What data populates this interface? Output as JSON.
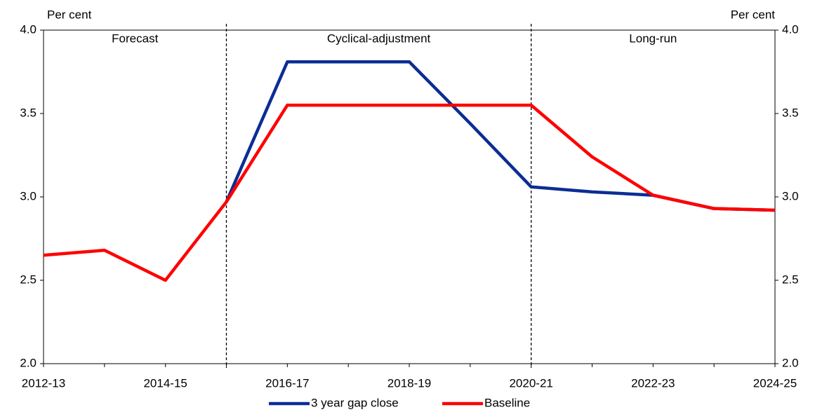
{
  "chart_data": {
    "type": "line",
    "ylabel": "Per cent",
    "y2label": "Per cent",
    "categories": [
      "2012-13",
      null,
      "2014-15",
      null,
      "2016-17",
      null,
      "2018-19",
      null,
      "2020-21",
      null,
      "2022-23",
      null,
      "2024-25"
    ],
    "series": [
      {
        "name": "3 year gap close",
        "color": "#0b2d94",
        "values": [
          null,
          null,
          null,
          2.97,
          3.81,
          3.81,
          3.81,
          3.44,
          3.06,
          3.03,
          3.01,
          2.93,
          2.92
        ]
      },
      {
        "name": "Baseline",
        "color": "#ff0000",
        "values": [
          2.65,
          2.68,
          2.5,
          2.97,
          3.55,
          3.55,
          3.55,
          3.55,
          3.55,
          3.24,
          3.01,
          2.93,
          2.92
        ]
      }
    ],
    "ylim": [
      2,
      4
    ],
    "yticks": [
      {
        "value": 2,
        "label": "2.0"
      },
      {
        "value": 2.5,
        "label": "2.5"
      },
      {
        "value": 3,
        "label": "3.0"
      },
      {
        "value": 3.5,
        "label": "3.5"
      },
      {
        "value": 4,
        "label": "4.0"
      }
    ],
    "y2lim": [
      2,
      4
    ],
    "y2ticks": [
      {
        "value": 2,
        "label": "2.0"
      },
      {
        "value": 2.5,
        "label": "2.5"
      },
      {
        "value": 3,
        "label": "3.0"
      },
      {
        "value": 3.5,
        "label": "3.5"
      },
      {
        "value": 4,
        "label": "4.0"
      }
    ],
    "dividers": [
      3,
      8
    ],
    "regions": [
      "Forecast",
      "Cyclical-adjustment",
      "Long-run"
    ],
    "legend": "bottom"
  }
}
